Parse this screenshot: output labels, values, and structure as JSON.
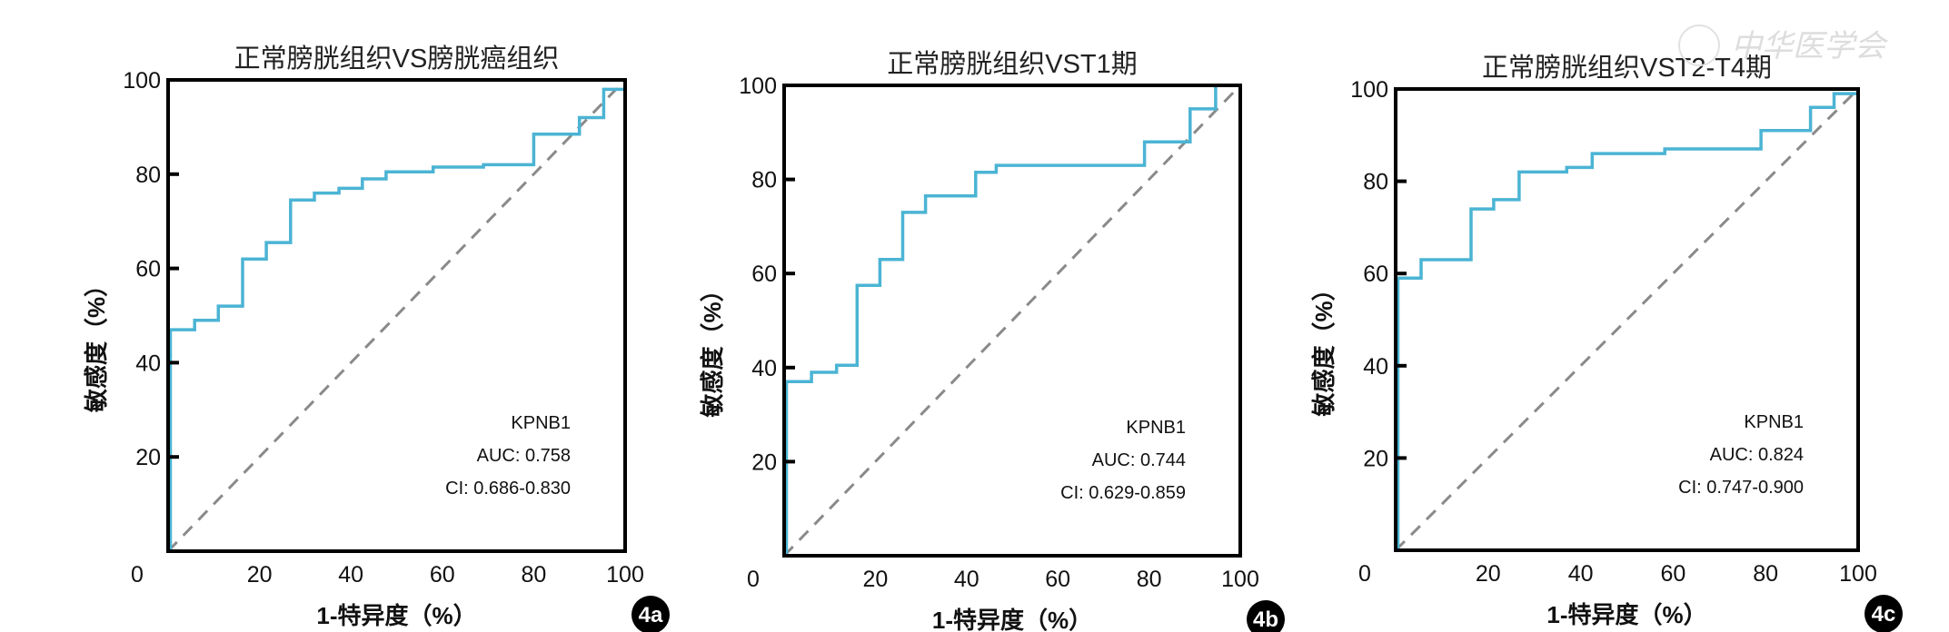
{
  "watermark": "中华医学会",
  "colors": {
    "curve": "#4BB4D4",
    "diagonal": "#8a8a8a",
    "axis": "#000000",
    "badge": "#000000"
  },
  "chart_data": [
    {
      "type": "line",
      "panel": "4a",
      "title": "正常膀胱组织VS膀胱癌组织",
      "xlabel": "1-特异度（%）",
      "ylabel": "敏感度（%）",
      "xlim": [
        0,
        100
      ],
      "ylim": [
        0,
        100
      ],
      "origin_label": "0",
      "xticks": [
        "20",
        "40",
        "60",
        "80",
        "100"
      ],
      "yticks": [
        "20",
        "40",
        "60",
        "80",
        "100"
      ],
      "legend": {
        "name": "KPNB1",
        "auc": "AUC: 0.758",
        "ci": "CI: 0.686-0.830"
      },
      "series": [
        {
          "name": "KPNB1",
          "x": [
            0,
            0.5,
            0.5,
            5.8,
            5.8,
            11,
            11,
            16.3,
            16.3,
            21.5,
            21.5,
            26.8,
            26.8,
            32,
            32,
            37.4,
            37.4,
            42.5,
            42.5,
            47.7,
            47.7,
            58,
            58,
            69,
            69,
            80,
            80,
            90,
            90,
            95.3,
            95.3,
            100,
            100
          ],
          "y": [
            0,
            0,
            47,
            47,
            49,
            49,
            52,
            52,
            62,
            62,
            65.5,
            65.5,
            74.5,
            74.5,
            76,
            76,
            77,
            77,
            79,
            79,
            80.5,
            80.5,
            81.5,
            81.5,
            82,
            82,
            88.5,
            88.5,
            92,
            92,
            98,
            98,
            100
          ]
        }
      ],
      "reference": {
        "x": [
          0,
          100
        ],
        "y": [
          0,
          100
        ]
      }
    },
    {
      "type": "line",
      "panel": "4b",
      "title": "正常膀胱组织VST1期",
      "xlabel": "1-特异度（%）",
      "ylabel": "敏感度（%）",
      "xlim": [
        0,
        100
      ],
      "ylim": [
        0,
        100
      ],
      "origin_label": "0",
      "xticks": [
        "20",
        "40",
        "60",
        "80",
        "100"
      ],
      "yticks": [
        "20",
        "40",
        "60",
        "80",
        "100"
      ],
      "legend": {
        "name": "KPNB1",
        "auc": "AUC: 0.744",
        "ci": "CI: 0.629-0.859"
      },
      "series": [
        {
          "name": "KPNB1",
          "x": [
            0,
            0.5,
            0.5,
            6,
            6,
            11.5,
            11.5,
            16,
            16,
            21,
            21,
            26,
            26,
            31,
            31,
            42,
            42,
            46.5,
            46.5,
            79,
            79,
            89,
            89,
            94.6,
            94.6,
            100
          ],
          "y": [
            0,
            0,
            37,
            37,
            39,
            39,
            40.5,
            40.5,
            57.5,
            57.5,
            63,
            63,
            73,
            73,
            76.5,
            76.5,
            81.5,
            81.5,
            83,
            83,
            88,
            88,
            95,
            95,
            100,
            100
          ]
        }
      ],
      "reference": {
        "x": [
          0,
          100
        ],
        "y": [
          0,
          100
        ]
      }
    },
    {
      "type": "line",
      "panel": "4c",
      "title": "正常膀胱组织VST2-T4期",
      "xlabel": "1-特异度（%）",
      "ylabel": "敏感度（%）",
      "xlim": [
        0,
        100
      ],
      "ylim": [
        0,
        100
      ],
      "origin_label": "0",
      "xticks": [
        "20",
        "40",
        "60",
        "80",
        "100"
      ],
      "yticks": [
        "20",
        "40",
        "60",
        "80",
        "100"
      ],
      "legend": {
        "name": "KPNB1",
        "auc": "AUC: 0.824",
        "ci": "CI: 0.747-0.900"
      },
      "series": [
        {
          "name": "KPNB1",
          "x": [
            0,
            0.5,
            0.5,
            5.5,
            5.5,
            16.3,
            16.3,
            21.2,
            21.2,
            26.7,
            26.7,
            37,
            37,
            42.5,
            42.5,
            58.2,
            58.2,
            79,
            79,
            89.7,
            89.7,
            94.8,
            94.8,
            100,
            100
          ],
          "y": [
            0,
            0,
            59,
            59,
            63,
            63,
            74,
            74,
            76,
            76,
            82,
            82,
            83,
            83,
            86,
            86,
            87,
            87,
            91,
            91,
            96,
            96,
            99,
            99,
            100
          ]
        }
      ],
      "reference": {
        "x": [
          0,
          100
        ],
        "y": [
          0,
          100
        ]
      }
    }
  ]
}
